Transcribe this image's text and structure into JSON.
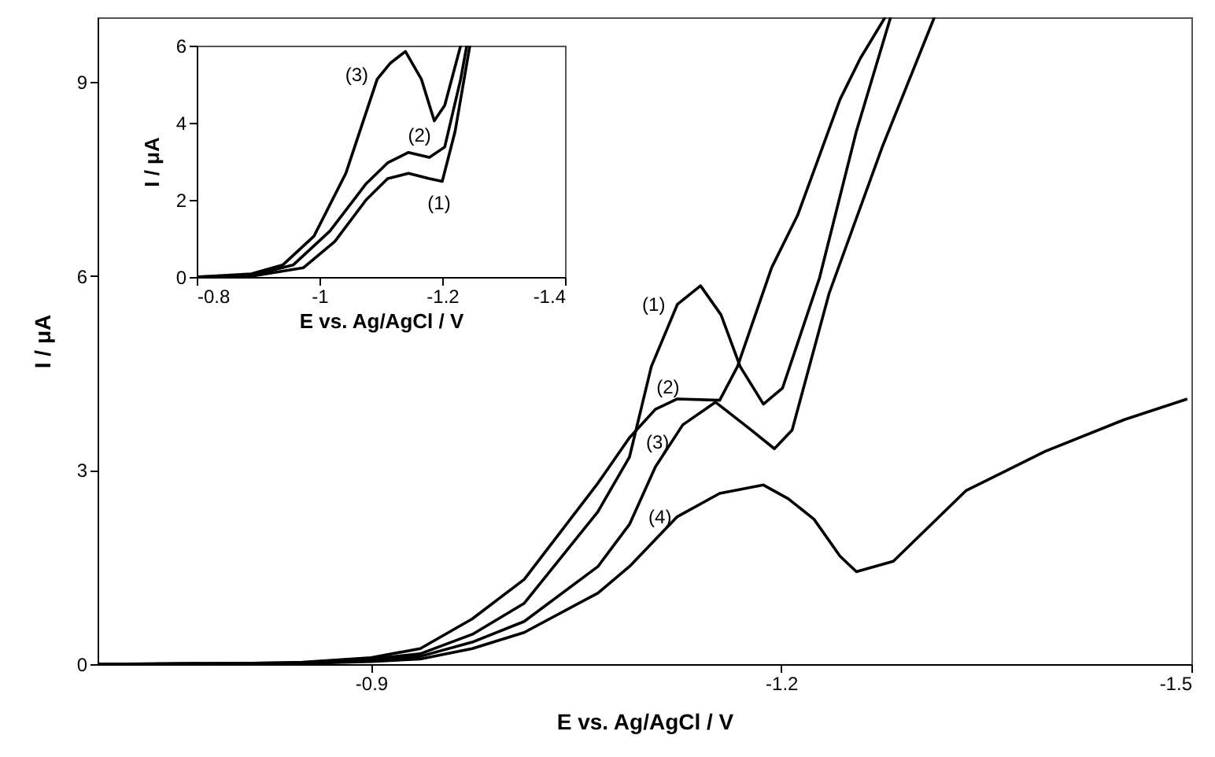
{
  "chart_data": [
    {
      "type": "line",
      "xlabel": "E vs. Ag/AgCl / V",
      "ylabel": "I / μA",
      "xlim": [
        -0.7,
        -1.5
      ],
      "ylim": [
        0,
        10
      ],
      "xticks": [
        -0.9,
        -1.2,
        -1.5
      ],
      "yticks": [
        0,
        3,
        6,
        9
      ],
      "series": [
        {
          "name": "(1)",
          "color": "#000000",
          "x": [
            -0.7,
            -0.85,
            -0.9,
            -0.936,
            -0.974,
            -1.012,
            -1.066,
            -1.089,
            -1.105,
            -1.124,
            -1.141,
            -1.156,
            -1.17,
            -1.187,
            -1.201,
            -1.228,
            -1.255,
            -1.28
          ],
          "values": [
            0,
            0.02,
            0.08,
            0.16,
            0.46,
            0.94,
            2.36,
            3.2,
            4.6,
            5.56,
            5.85,
            5.4,
            4.6,
            4.02,
            4.27,
            5.97,
            8.24,
            10
          ]
        },
        {
          "name": "(2)",
          "color": "#000000",
          "x": [
            -0.7,
            -0.8,
            -0.85,
            -0.9,
            -0.936,
            -0.974,
            -1.012,
            -1.066,
            -1.089,
            -1.108,
            -1.124,
            -1.155,
            -1.168,
            -1.193,
            -1.212,
            -1.243,
            -1.258,
            -1.276
          ],
          "values": [
            0,
            0.01,
            0.03,
            0.1,
            0.24,
            0.7,
            1.31,
            2.8,
            3.5,
            3.94,
            4.1,
            4.08,
            4.6,
            6.13,
            6.94,
            8.73,
            9.37,
            10
          ]
        },
        {
          "name": "(3)",
          "color": "#000000",
          "x": [
            -0.7,
            -0.85,
            -0.9,
            -0.936,
            -0.974,
            -1.012,
            -1.066,
            -1.089,
            -1.108,
            -1.128,
            -1.152,
            -1.178,
            -1.195,
            -1.208,
            -1.235,
            -1.274,
            -1.312
          ],
          "values": [
            0,
            0.01,
            0.06,
            0.12,
            0.34,
            0.66,
            1.51,
            2.16,
            3.05,
            3.7,
            4.05,
            3.62,
            3.33,
            3.62,
            5.73,
            8,
            10
          ]
        },
        {
          "name": "(4)",
          "color": "#000000",
          "x": [
            -0.7,
            -0.85,
            -0.9,
            -0.936,
            -0.974,
            -1.012,
            -1.066,
            -1.089,
            -1.124,
            -1.155,
            -1.187,
            -1.205,
            -1.224,
            -1.243,
            -1.255,
            -1.282,
            -1.335,
            -1.393,
            -1.451,
            -1.497
          ],
          "values": [
            0,
            0.01,
            0.04,
            0.08,
            0.24,
            0.49,
            1.1,
            1.51,
            2.28,
            2.64,
            2.77,
            2.56,
            2.24,
            1.67,
            1.43,
            1.59,
            2.68,
            3.29,
            3.78,
            4.1
          ]
        }
      ]
    },
    {
      "type": "line",
      "xlabel": "E vs. Ag/AgCl / V",
      "ylabel": "I / μA",
      "xlim": [
        -0.8,
        -1.4
      ],
      "ylim": [
        0,
        6
      ],
      "xticks": [
        -0.8,
        -1,
        -1.2,
        -1.4
      ],
      "yticks": [
        0,
        2,
        4,
        6
      ],
      "series": [
        {
          "name": "(1)",
          "color": "#000000",
          "x": [
            -0.8,
            -0.889,
            -0.974,
            -1.025,
            -1.076,
            -1.111,
            -1.145,
            -1.179,
            -1.2,
            -1.221,
            -1.245
          ],
          "values": [
            0,
            0.02,
            0.24,
            0.92,
            2,
            2.55,
            2.69,
            2.55,
            2.48,
            3.78,
            6
          ]
        },
        {
          "name": "(2)",
          "color": "#000000",
          "x": [
            -0.8,
            -0.889,
            -0.957,
            -1.017,
            -1.076,
            -1.111,
            -1.145,
            -1.179,
            -1.204,
            -1.23,
            -1.24
          ],
          "values": [
            0,
            0.04,
            0.31,
            1.19,
            2.42,
            2.96,
            3.23,
            3.1,
            3.37,
            5.13,
            6
          ]
        },
        {
          "name": "(3)",
          "color": "#000000",
          "x": [
            -0.8,
            -0.889,
            -0.94,
            -0.991,
            -1.043,
            -1.094,
            -1.115,
            -1.14,
            -1.166,
            -1.187,
            -1.204,
            -1.23
          ],
          "values": [
            0,
            0.08,
            0.31,
            1.06,
            2.69,
            5.13,
            5.54,
            5.85,
            5.13,
            4.05,
            4.45,
            6
          ]
        }
      ]
    }
  ]
}
